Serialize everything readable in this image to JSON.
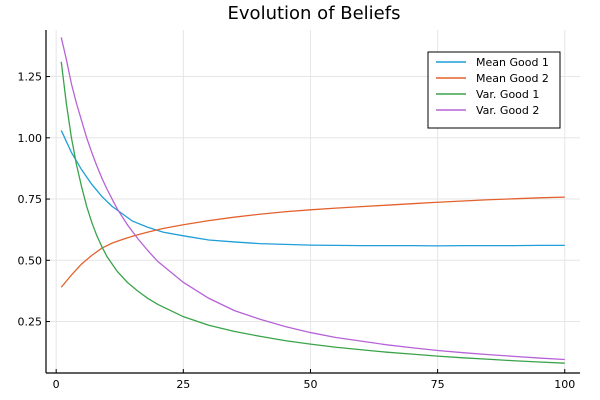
{
  "chart_data": {
    "type": "line",
    "title": "Evolution of Beliefs",
    "xlabel": "",
    "ylabel": "",
    "xlim": [
      -2,
      103
    ],
    "ylim": [
      0.04,
      1.44
    ],
    "xticks": [
      0,
      25,
      50,
      75,
      100
    ],
    "yticks": [
      0.25,
      0.5,
      0.75,
      1.0,
      1.25
    ],
    "ytick_labels": [
      "0.25",
      "0.50",
      "0.75",
      "1.00",
      "1.25"
    ],
    "grid": true,
    "legend_position": "top-right",
    "series": [
      {
        "name": "Mean Good 1",
        "color": "#1f9ed8",
        "x": [
          1,
          3,
          5,
          7,
          9,
          11,
          13,
          15,
          18,
          21,
          25,
          30,
          35,
          40,
          45,
          50,
          55,
          60,
          65,
          70,
          75,
          80,
          85,
          90,
          95,
          100
        ],
        "y": [
          1.03,
          0.94,
          0.87,
          0.81,
          0.76,
          0.72,
          0.69,
          0.66,
          0.635,
          0.615,
          0.6,
          0.583,
          0.575,
          0.568,
          0.565,
          0.562,
          0.561,
          0.56,
          0.56,
          0.56,
          0.559,
          0.56,
          0.56,
          0.56,
          0.561,
          0.561
        ]
      },
      {
        "name": "Mean Good 2",
        "color": "#e2622e",
        "x": [
          1,
          3,
          5,
          7,
          9,
          11,
          13,
          15,
          18,
          21,
          25,
          30,
          35,
          40,
          45,
          50,
          55,
          60,
          65,
          70,
          75,
          80,
          85,
          90,
          95,
          100
        ],
        "y": [
          0.39,
          0.44,
          0.485,
          0.52,
          0.55,
          0.57,
          0.585,
          0.598,
          0.615,
          0.63,
          0.645,
          0.662,
          0.676,
          0.688,
          0.698,
          0.706,
          0.713,
          0.719,
          0.725,
          0.731,
          0.737,
          0.742,
          0.747,
          0.751,
          0.755,
          0.758
        ]
      },
      {
        "name": "Var. Good 1",
        "color": "#3aa34a",
        "x": [
          1,
          2,
          3,
          4,
          5,
          6,
          7,
          8,
          9,
          10,
          12,
          14,
          16,
          18,
          20,
          25,
          30,
          35,
          40,
          45,
          50,
          55,
          60,
          65,
          70,
          75,
          80,
          85,
          90,
          95,
          100
        ],
        "y": [
          1.31,
          1.14,
          1.0,
          0.89,
          0.8,
          0.72,
          0.655,
          0.6,
          0.555,
          0.515,
          0.455,
          0.41,
          0.375,
          0.345,
          0.32,
          0.27,
          0.235,
          0.21,
          0.19,
          0.172,
          0.158,
          0.145,
          0.135,
          0.125,
          0.117,
          0.109,
          0.102,
          0.096,
          0.09,
          0.085,
          0.08
        ]
      },
      {
        "name": "Var. Good 2",
        "color": "#b663d6",
        "x": [
          1,
          2,
          3,
          4,
          5,
          6,
          7,
          8,
          9,
          10,
          12,
          14,
          16,
          18,
          20,
          25,
          30,
          35,
          40,
          45,
          50,
          55,
          60,
          65,
          70,
          75,
          80,
          85,
          90,
          95,
          100
        ],
        "y": [
          1.41,
          1.32,
          1.22,
          1.14,
          1.07,
          1.0,
          0.94,
          0.885,
          0.835,
          0.79,
          0.71,
          0.645,
          0.59,
          0.54,
          0.495,
          0.41,
          0.345,
          0.295,
          0.26,
          0.23,
          0.205,
          0.185,
          0.17,
          0.155,
          0.143,
          0.132,
          0.123,
          0.115,
          0.108,
          0.101,
          0.095
        ]
      }
    ]
  }
}
